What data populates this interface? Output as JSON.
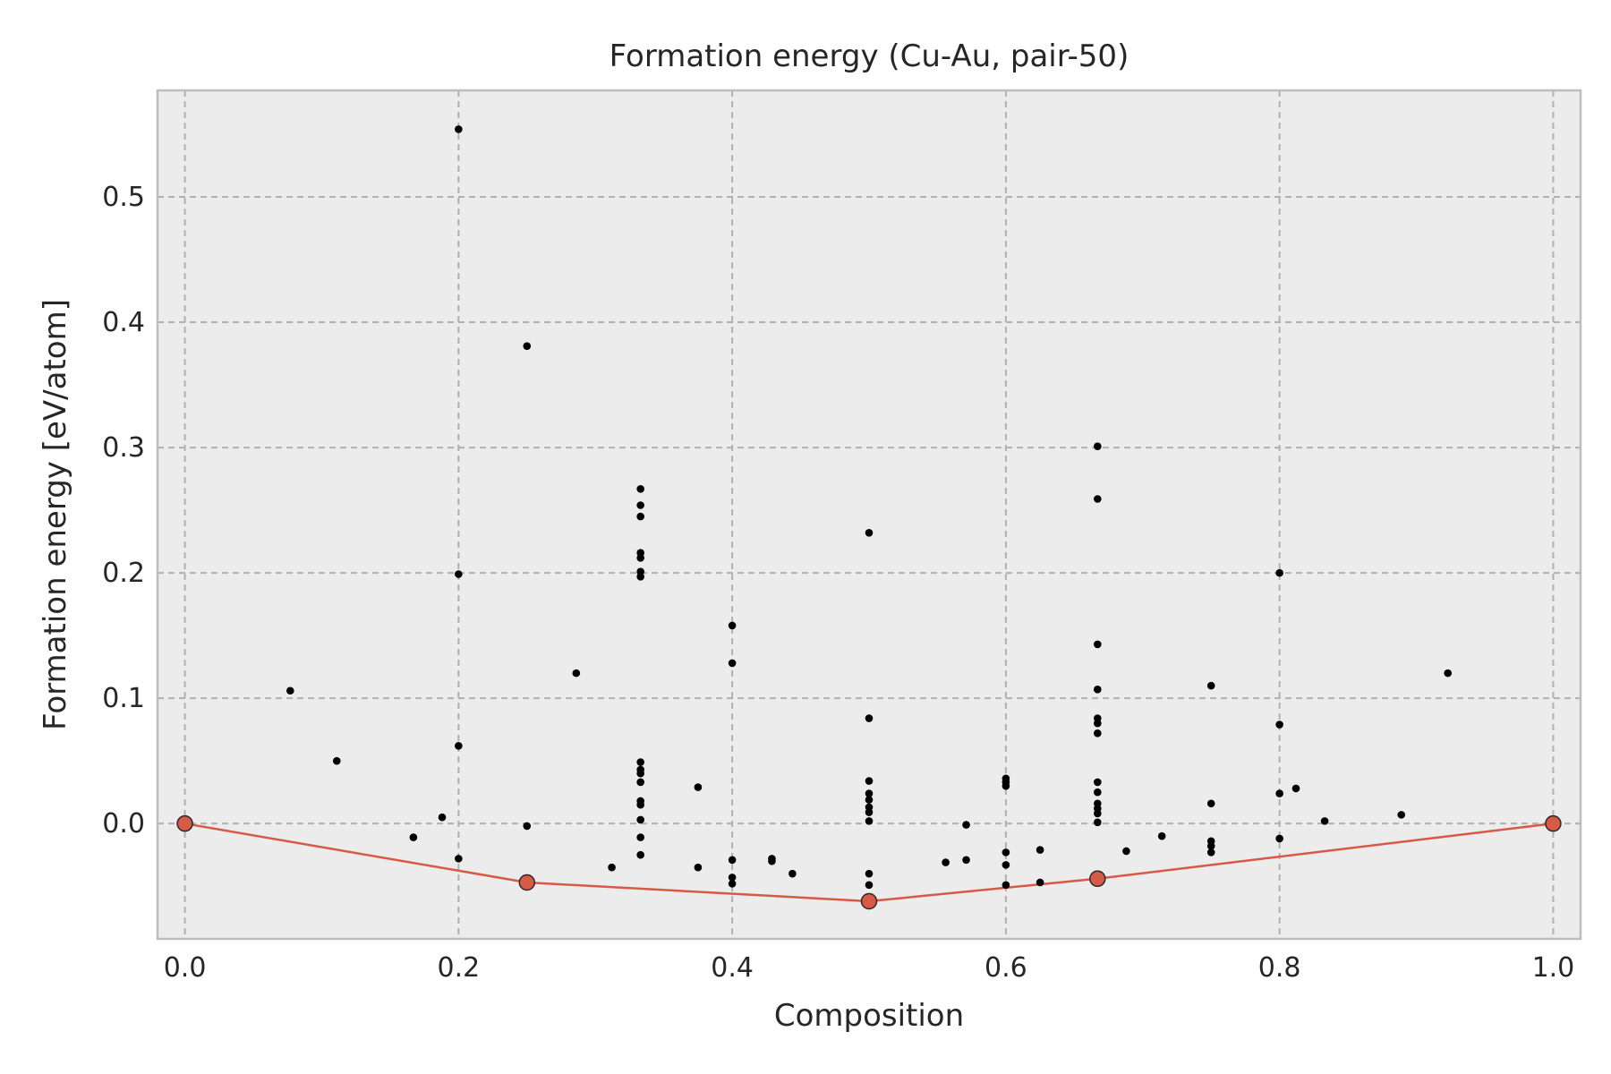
{
  "chart_data": {
    "type": "scatter",
    "title": "Formation energy (Cu-Au, pair-50)",
    "xlabel": "Composition",
    "ylabel": "Formation energy [eV/atom]",
    "xlim": [
      -0.02,
      1.02
    ],
    "ylim": [
      -0.092,
      0.585
    ],
    "xticks": [
      "0.0",
      "0.2",
      "0.4",
      "0.6",
      "0.8",
      "1.0"
    ],
    "xtick_values": [
      0.0,
      0.2,
      0.4,
      0.6,
      0.8,
      1.0
    ],
    "yticks": [
      "0.0",
      "0.1",
      "0.2",
      "0.3",
      "0.4",
      "0.5"
    ],
    "ytick_values": [
      0.0,
      0.1,
      0.2,
      0.3,
      0.4,
      0.5
    ],
    "grid": true,
    "background": "#ececec",
    "point_color": "#000000",
    "hull_color": "#d65a45",
    "series": [
      {
        "kind": "points",
        "points": [
          [
            0.077,
            0.106
          ],
          [
            0.111,
            0.05
          ],
          [
            0.167,
            -0.011
          ],
          [
            0.188,
            0.005
          ],
          [
            0.2,
            0.554
          ],
          [
            0.2,
            0.199
          ],
          [
            0.2,
            0.062
          ],
          [
            0.2,
            -0.028
          ],
          [
            0.25,
            0.381
          ],
          [
            0.25,
            -0.002
          ],
          [
            0.25,
            -0.044
          ],
          [
            0.286,
            0.12
          ],
          [
            0.312,
            -0.035
          ],
          [
            0.333,
            0.267
          ],
          [
            0.333,
            0.254
          ],
          [
            0.333,
            0.245
          ],
          [
            0.333,
            0.216
          ],
          [
            0.333,
            0.212
          ],
          [
            0.333,
            0.201
          ],
          [
            0.333,
            0.197
          ],
          [
            0.333,
            0.049
          ],
          [
            0.333,
            0.043
          ],
          [
            0.333,
            0.04
          ],
          [
            0.333,
            0.033
          ],
          [
            0.333,
            0.018
          ],
          [
            0.333,
            0.015
          ],
          [
            0.333,
            0.003
          ],
          [
            0.333,
            -0.011
          ],
          [
            0.333,
            -0.025
          ],
          [
            0.375,
            0.029
          ],
          [
            0.375,
            -0.035
          ],
          [
            0.4,
            0.158
          ],
          [
            0.4,
            0.128
          ],
          [
            0.4,
            -0.029
          ],
          [
            0.4,
            -0.043
          ],
          [
            0.4,
            -0.048
          ],
          [
            0.429,
            -0.028
          ],
          [
            0.429,
            -0.03
          ],
          [
            0.444,
            -0.04
          ],
          [
            0.5,
            0.232
          ],
          [
            0.5,
            0.084
          ],
          [
            0.5,
            0.034
          ],
          [
            0.5,
            0.024
          ],
          [
            0.5,
            0.019
          ],
          [
            0.5,
            0.013
          ],
          [
            0.5,
            0.009
          ],
          [
            0.5,
            0.002
          ],
          [
            0.5,
            -0.04
          ],
          [
            0.5,
            -0.049
          ],
          [
            0.556,
            -0.031
          ],
          [
            0.571,
            -0.001
          ],
          [
            0.571,
            -0.029
          ],
          [
            0.6,
            0.036
          ],
          [
            0.6,
            0.033
          ],
          [
            0.6,
            0.03
          ],
          [
            0.6,
            -0.023
          ],
          [
            0.6,
            -0.033
          ],
          [
            0.6,
            -0.049
          ],
          [
            0.625,
            -0.021
          ],
          [
            0.625,
            -0.047
          ],
          [
            0.667,
            0.301
          ],
          [
            0.667,
            0.259
          ],
          [
            0.667,
            0.143
          ],
          [
            0.667,
            0.107
          ],
          [
            0.667,
            0.084
          ],
          [
            0.667,
            0.08
          ],
          [
            0.667,
            0.072
          ],
          [
            0.667,
            0.033
          ],
          [
            0.667,
            0.025
          ],
          [
            0.667,
            0.016
          ],
          [
            0.667,
            0.012
          ],
          [
            0.667,
            0.008
          ],
          [
            0.667,
            0.001
          ],
          [
            0.688,
            -0.022
          ],
          [
            0.714,
            -0.01
          ],
          [
            0.75,
            0.11
          ],
          [
            0.75,
            0.016
          ],
          [
            0.75,
            -0.014
          ],
          [
            0.75,
            -0.018
          ],
          [
            0.75,
            -0.023
          ],
          [
            0.8,
            0.2
          ],
          [
            0.8,
            0.079
          ],
          [
            0.8,
            0.024
          ],
          [
            0.8,
            -0.012
          ],
          [
            0.812,
            0.028
          ],
          [
            0.833,
            0.002
          ],
          [
            0.889,
            0.007
          ],
          [
            0.923,
            0.12
          ]
        ]
      },
      {
        "kind": "hull",
        "points": [
          [
            0.0,
            0.0
          ],
          [
            0.25,
            -0.047
          ],
          [
            0.5,
            -0.062
          ],
          [
            0.667,
            -0.044
          ],
          [
            1.0,
            0.0
          ]
        ]
      }
    ]
  }
}
